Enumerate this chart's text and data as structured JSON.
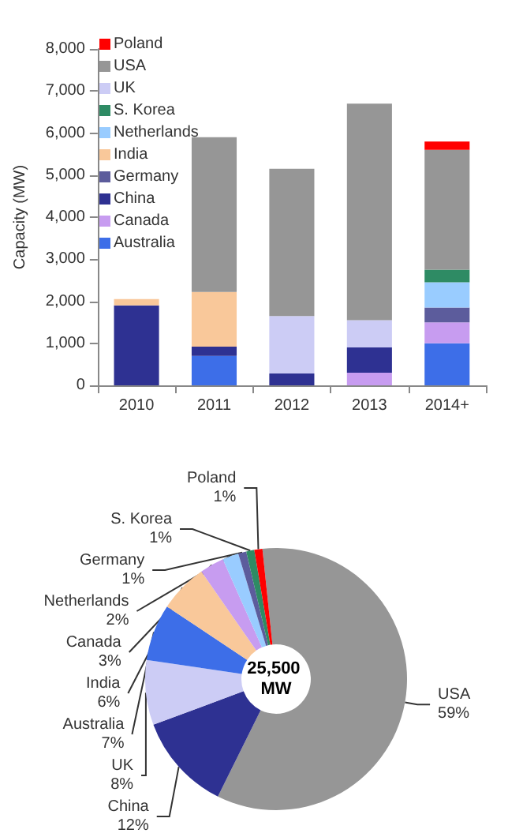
{
  "chart_data": [
    {
      "type": "bar",
      "ylabel": "Capacity (MW)",
      "categories": [
        "2010",
        "2011",
        "2012",
        "2013",
        "2014+"
      ],
      "stacked": true,
      "ylim": [
        0,
        8000
      ],
      "yticks": [
        {
          "value": 0,
          "label": "0"
        },
        {
          "value": 1000,
          "label": "1,000"
        },
        {
          "value": 2000,
          "label": "2,000"
        },
        {
          "value": 3000,
          "label": "3,000"
        },
        {
          "value": 4000,
          "label": "4,000"
        },
        {
          "value": 5000,
          "label": "5,000"
        },
        {
          "value": 6000,
          "label": "6,000"
        },
        {
          "value": 7000,
          "label": "7,000"
        },
        {
          "value": 8000,
          "label": "8,000"
        }
      ],
      "grid": false,
      "legend": "top left",
      "series": [
        {
          "name": "Australia",
          "color": "#3d6ee8",
          "values": [
            null,
            700,
            null,
            null,
            1000
          ]
        },
        {
          "name": "Canada",
          "color": "#c79cf0",
          "values": [
            null,
            null,
            null,
            300,
            500
          ]
        },
        {
          "name": "China",
          "color": "#2e3192",
          "values": [
            1900,
            220,
            280,
            600,
            null
          ]
        },
        {
          "name": "Germany",
          "color": "#5c5c9c",
          "values": [
            null,
            null,
            null,
            null,
            350
          ]
        },
        {
          "name": "India",
          "color": "#f9c89a",
          "values": [
            150,
            1300,
            null,
            null,
            null
          ]
        },
        {
          "name": "Netherlands",
          "color": "#99ccff",
          "values": [
            null,
            null,
            null,
            null,
            600
          ]
        },
        {
          "name": "S. Korea",
          "color": "#2e8b64",
          "values": [
            null,
            null,
            null,
            null,
            300
          ]
        },
        {
          "name": "UK",
          "color": "#ccccf5",
          "values": [
            null,
            null,
            1370,
            650,
            null
          ]
        },
        {
          "name": "USA",
          "color": "#969696",
          "values": [
            null,
            3680,
            3500,
            5150,
            2850
          ]
        },
        {
          "name": "Poland",
          "color": "#ff0000",
          "values": [
            null,
            null,
            null,
            null,
            200
          ]
        }
      ]
    },
    {
      "type": "donut",
      "annotations": [
        "25,500 MW"
      ],
      "legend": false,
      "value_labels": [
        "59%",
        "12%",
        "8%",
        "7%",
        "6%",
        "3%",
        "2%",
        "1%",
        "1%",
        "1%"
      ],
      "categories": [
        "USA",
        "China",
        "UK",
        "Australia",
        "India",
        "Canada",
        "Netherlands",
        "Germany",
        "S. Korea",
        "Poland"
      ],
      "values": [
        59,
        12,
        8,
        7,
        6,
        3,
        2,
        1,
        1,
        1
      ],
      "colors": [
        "#969696",
        "#2e3192",
        "#ccccf5",
        "#3d6ee8",
        "#f9c89a",
        "#c79cf0",
        "#99ccff",
        "#5c5c9c",
        "#2e8b64",
        "#ff0000"
      ]
    }
  ]
}
